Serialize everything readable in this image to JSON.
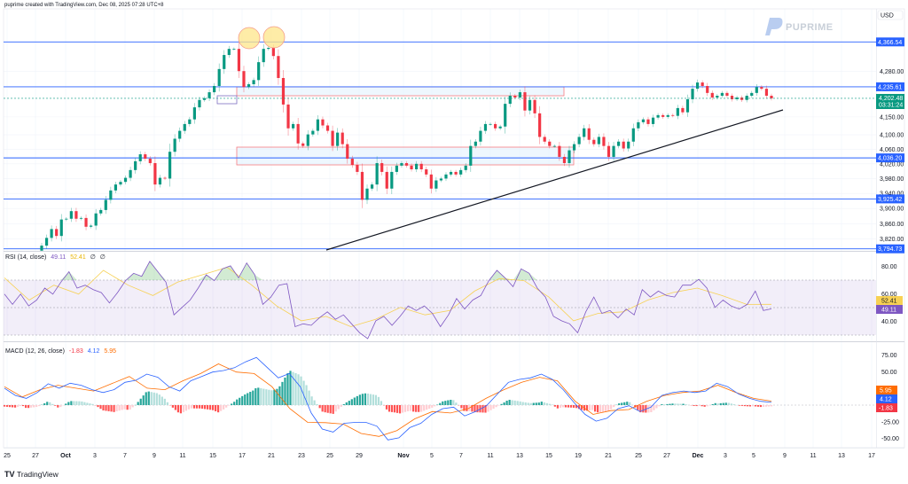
{
  "header": {
    "caption": "puprime created with TradingView.com, Dec 08, 2025 07:28 UTC+8"
  },
  "branding": {
    "watermark": "PUPRIME",
    "footer_logo": "TradingView",
    "footer_logo_mark": "TV"
  },
  "price_axis": {
    "currency": "USD",
    "ticks": [
      "4,280.00",
      "4,150.00",
      "4,100.00",
      "4,060.00",
      "4,020.00",
      "3,980.00",
      "3,940.00",
      "3,900.00",
      "3,860.00",
      "3,820.00"
    ],
    "tick_values": [
      4280,
      4150,
      4100,
      4060,
      4020,
      3980,
      3940,
      3900,
      3860,
      3820
    ],
    "levels": [
      {
        "value": 4366.54,
        "label": "4,366.54"
      },
      {
        "value": 4235.61,
        "label": "4,235.61"
      },
      {
        "value": 4036.2,
        "label": "4,036.20"
      },
      {
        "value": 3925.42,
        "label": "3,925.42"
      },
      {
        "value": 3794.73,
        "label": "3,794.73"
      }
    ],
    "last_price": {
      "value": 4202.48,
      "label": "4,202.48",
      "countdown": "03:31:24"
    },
    "scale": "log"
  },
  "time_axis": {
    "ticks": [
      "25",
      "27",
      "Oct",
      "3",
      "7",
      "9",
      "11",
      "15",
      "17",
      "21",
      "23",
      "25",
      "29",
      "Nov",
      "5",
      "7",
      "11",
      "13",
      "15",
      "19",
      "21",
      "25",
      "27",
      "Dec",
      "3",
      "5",
      "9",
      "11",
      "13",
      "17"
    ]
  },
  "rsi": {
    "legend_title": "RSI (14, close)",
    "rsi_value": "49.11",
    "ma_value": "52.41",
    "extra1": "∅",
    "extra2": "∅",
    "axis_ticks": [
      "80.00",
      "60.00",
      "40.00"
    ],
    "axis_values": [
      80,
      60,
      40
    ],
    "bands": [
      70,
      30
    ],
    "midline": 50
  },
  "macd": {
    "legend_title": "MACD (12, 26, close)",
    "hist_value": "-1.83",
    "macd_value": "4.12",
    "signal_value": "5.95",
    "axis_ticks": [
      "75.00",
      "50.00",
      "-25.00",
      "-50.00"
    ],
    "axis_values": [
      75,
      50,
      -25,
      -50
    ]
  },
  "colors": {
    "up": "#089981",
    "down": "#f23645",
    "level_line": "#2962ff",
    "rsi": "#7e57c2",
    "rsi_ma": "#f7d154",
    "macd": "#2962ff",
    "signal": "#ff6d00",
    "hist_up": "#26a69a",
    "hist_up_light": "#b2dfdb",
    "hist_down": "#ff5252",
    "hist_down_light": "#ffcdd2",
    "zone_border": "#f77c80",
    "zone_fill": "#e3f2fd",
    "highlight_circle": "#fde68a",
    "trendline": "#131722"
  },
  "chart_data": [
    {
      "type": "candlestick",
      "title": "",
      "series": [
        {
          "close": [
            3803,
            3823,
            3846,
            3828,
            3871,
            3873,
            3893,
            3873,
            3875,
            3852,
            3855,
            3887,
            3896,
            3923,
            3948,
            3964,
            3971,
            3982,
            4003,
            4027,
            4046,
            4034,
            4022,
            3964,
            3982,
            3980,
            4053,
            4089,
            4111,
            4130,
            4143,
            4177,
            4198,
            4203,
            4220,
            4238,
            4287,
            4328,
            4346,
            4346,
            4281,
            4235,
            4243,
            4255,
            4307,
            4346,
            4349,
            4325,
            4261,
            4185,
            4118,
            4130,
            4076,
            4069,
            4101,
            4111,
            4143,
            4126,
            4111,
            4069,
            4106,
            4074,
            4034,
            4017,
            3998,
            3923,
            3953,
            3964,
            4022,
            3998,
            3953,
            3998,
            4015,
            4022,
            4015,
            4005,
            4020,
            4005,
            3991,
            3953,
            3975,
            3980,
            3991,
            3998,
            3991,
            4003,
            4015,
            4069,
            4081,
            4111,
            4130,
            4130,
            4118,
            4123,
            4187,
            4210,
            4205,
            4220,
            4168,
            4198,
            4160,
            4094,
            4081,
            4069,
            4069,
            4039,
            4022,
            4057,
            4074,
            4094,
            4118,
            4086,
            4074,
            4094,
            4069,
            4039,
            4069,
            4081,
            4062,
            4081,
            4118,
            4135,
            4143,
            4130,
            4148,
            4155,
            4150,
            4155,
            4153,
            4175,
            4163,
            4200,
            4230,
            4248,
            4238,
            4218,
            4205,
            4210,
            4218,
            4210,
            4200,
            4205,
            4198,
            4210,
            4218,
            4235,
            4230,
            4210,
            4202.48
          ]
        }
      ],
      "first_open": 3790,
      "ylim": [
        3794.73,
        4366.54
      ]
    },
    {
      "type": "line",
      "series": [
        {
          "name": "RSI",
          "values": [
            59.8,
            52.3,
            59.8,
            51.2,
            55.5,
            64.2,
            59.8,
            68.5,
            76.1,
            64.2,
            66.3,
            63.1,
            60.9,
            53.4,
            60.9,
            69.6,
            75.0,
            72.8,
            83.6,
            76.1,
            68.5,
            44.7,
            50.1,
            55.5,
            64.2,
            73.9,
            69.6,
            78.2,
            80.4,
            71.7,
            82.5,
            73.9,
            52.3,
            57.7,
            66.3,
            67.4,
            36.1,
            38.2,
            37.1,
            42.5,
            46.9,
            41.5,
            44.7,
            38.2,
            31.7,
            27.4,
            40.4,
            43.6,
            37.1,
            43.6,
            51.2,
            47.9,
            51.2,
            45.8,
            36.1,
            44.7,
            56.6,
            49.0,
            55.5,
            58.8,
            69.6,
            77.1,
            71.7,
            65.2,
            78.2,
            75.0,
            64.2,
            57.7,
            43.6,
            40.4,
            38.2,
            31.7,
            46.9,
            57.7,
            45.8,
            47.9,
            42.5,
            49.0,
            44.7,
            63.1,
            57.7,
            62.0,
            58.8,
            57.7,
            66.3,
            66.3,
            70.6,
            64.2,
            50.1,
            55.5,
            51.2,
            49.0,
            52.3,
            62.0,
            47.9,
            49.11
          ]
        },
        {
          "name": "RSI-based MA",
          "values": [
            71.7,
            55.5,
            66.3,
            59.8,
            77.1,
            66.3,
            58.8,
            68.5,
            73.9,
            79.3,
            66.3,
            51.2,
            40.4,
            43.6,
            36.1,
            41.5,
            50.1,
            44.7,
            47.9,
            62.0,
            71.1,
            69.6,
            57.7,
            40.4,
            45.8,
            46.9,
            55.5,
            60.9,
            64.2,
            58.8,
            52.3,
            52.41
          ]
        }
      ],
      "ylim": [
        20,
        90
      ]
    },
    {
      "type": "line",
      "series": [
        {
          "name": "MACD",
          "values": [
            25.4,
            14.5,
            10.1,
            18.9,
            32.0,
            25.4,
            32.9,
            29.8,
            23.2,
            18.9,
            23.2,
            34.2,
            37.3,
            46.5,
            41.7,
            27.6,
            21.1,
            36.4,
            43.0,
            49.6,
            51.8,
            56.1,
            64.9,
            71.5,
            56.1,
            40.8,
            47.4,
            27.6,
            -11.8,
            -35.9,
            -40.4,
            -27.2,
            -25.9,
            -25.9,
            -31.6,
            -52.2,
            -49.1,
            -33.8,
            -27.2,
            -14.0,
            -5.3,
            -3.1,
            -16.2,
            -9.6,
            -0.9,
            16.7,
            34.2,
            38.6,
            40.8,
            46.5,
            38.6,
            23.2,
            3.5,
            -14.0,
            -24.1,
            -19.7,
            -5.3,
            -0.9,
            -9.6,
            -3.1,
            14.5,
            18.9,
            21.1,
            18.9,
            21.1,
            32.9,
            27.6,
            16.7,
            10.1,
            5.7,
            4.12
          ]
        },
        {
          "name": "Signal",
          "values": [
            27.6,
            12.3,
            23.2,
            29.8,
            25.4,
            21.1,
            32.0,
            43.0,
            25.4,
            23.2,
            36.4,
            47.4,
            61.8,
            49.6,
            47.4,
            27.6,
            -5.3,
            -25.9,
            -26.3,
            -28.5,
            -42.5,
            -46.9,
            -38.2,
            -20.6,
            -9.6,
            -11.8,
            -5.3,
            10.1,
            23.2,
            34.2,
            41.7,
            36.4,
            5.7,
            -14.0,
            -8.3,
            -6.6,
            5.7,
            14.5,
            18.9,
            21.1,
            29.8,
            18.9,
            10.1,
            5.95
          ]
        }
      ],
      "histogram": "MACD - Signal",
      "ylim": [
        -60,
        85
      ]
    }
  ]
}
